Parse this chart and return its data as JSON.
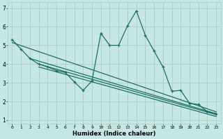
{
  "xlabel": "Humidex (Indice chaleur)",
  "bg_color": "#c5e8e5",
  "line_color": "#1a6e64",
  "grid_color": "#b0d0cc",
  "xlim": [
    -0.5,
    23.5
  ],
  "ylim": [
    0.8,
    7.3
  ],
  "xticks": [
    0,
    1,
    2,
    3,
    4,
    5,
    6,
    7,
    8,
    9,
    10,
    11,
    12,
    13,
    14,
    15,
    16,
    17,
    18,
    19,
    20,
    21,
    22,
    23
  ],
  "yticks": [
    1,
    2,
    3,
    4,
    5,
    6,
    7
  ],
  "main_line_x": [
    0,
    1,
    2,
    3,
    4,
    5,
    6,
    7,
    8,
    9,
    10,
    11,
    12,
    13,
    14,
    15,
    16,
    17,
    18,
    19,
    20,
    21,
    22,
    23
  ],
  "main_line_y": [
    5.3,
    4.8,
    4.3,
    4.0,
    3.85,
    3.65,
    3.55,
    3.05,
    2.6,
    3.1,
    5.65,
    5.0,
    5.0,
    6.05,
    6.85,
    5.55,
    4.7,
    3.85,
    2.55,
    2.6,
    1.9,
    1.85,
    1.45,
    1.35
  ],
  "reg_lines": [
    {
      "x": [
        0,
        23
      ],
      "y": [
        5.15,
        1.45
      ]
    },
    {
      "x": [
        2,
        23
      ],
      "y": [
        4.3,
        1.35
      ]
    },
    {
      "x": [
        3,
        23
      ],
      "y": [
        4.0,
        1.3
      ]
    },
    {
      "x": [
        3,
        23
      ],
      "y": [
        3.85,
        1.2
      ]
    }
  ]
}
